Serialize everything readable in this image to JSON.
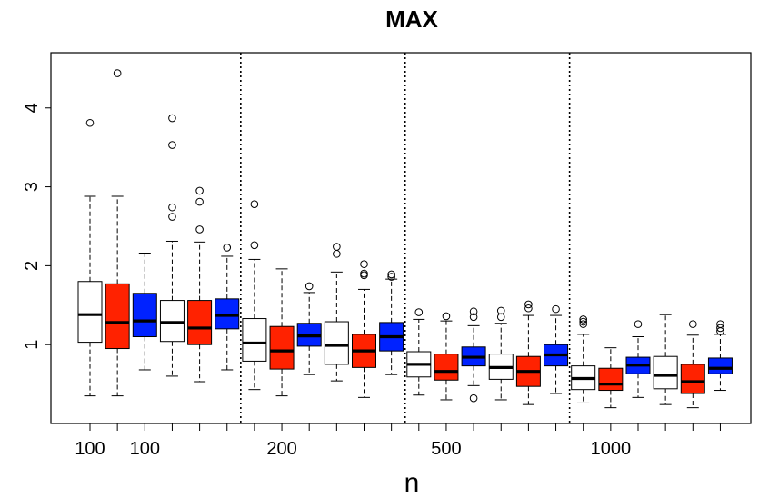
{
  "chart_data": {
    "type": "boxplot",
    "title": "MAX",
    "xlabel": "n",
    "ylabel": "",
    "ylim": [
      0.0,
      4.7
    ],
    "y_ticks": [
      1,
      2,
      3,
      4
    ],
    "x_tick_labels": [
      "100",
      "100",
      "200",
      "500",
      "1000"
    ],
    "separators_after_box": [
      6,
      12,
      18
    ],
    "colors": {
      "white": "#ffffff",
      "red": "#ff2200",
      "blue": "#0022ff"
    },
    "boxes": [
      {
        "group": "100",
        "color": "white",
        "whislo": 0.35,
        "q1": 1.03,
        "med": 1.38,
        "q3": 1.8,
        "whishi": 2.88,
        "outliers": [
          3.81
        ]
      },
      {
        "group": "100",
        "color": "red",
        "whislo": 0.35,
        "q1": 0.95,
        "med": 1.28,
        "q3": 1.77,
        "whishi": 2.88,
        "outliers": [
          4.44
        ]
      },
      {
        "group": "100",
        "color": "blue",
        "whislo": 0.68,
        "q1": 1.1,
        "med": 1.3,
        "q3": 1.65,
        "whishi": 2.16,
        "outliers": []
      },
      {
        "group": "100",
        "color": "white",
        "whislo": 0.6,
        "q1": 1.04,
        "med": 1.28,
        "q3": 1.56,
        "whishi": 2.31,
        "outliers": [
          2.62,
          2.74,
          3.53,
          3.87
        ]
      },
      {
        "group": "100",
        "color": "red",
        "whislo": 0.53,
        "q1": 1.0,
        "med": 1.21,
        "q3": 1.56,
        "whishi": 2.3,
        "outliers": [
          2.46,
          2.81,
          2.95
        ]
      },
      {
        "group": "100",
        "color": "blue",
        "whislo": 0.68,
        "q1": 1.2,
        "med": 1.37,
        "q3": 1.58,
        "whishi": 2.12,
        "outliers": [
          2.23
        ]
      },
      {
        "group": "200",
        "color": "white",
        "whislo": 0.43,
        "q1": 0.79,
        "med": 1.02,
        "q3": 1.33,
        "whishi": 2.08,
        "outliers": [
          2.26,
          2.78
        ]
      },
      {
        "group": "200",
        "color": "red",
        "whislo": 0.35,
        "q1": 0.69,
        "med": 0.92,
        "q3": 1.23,
        "whishi": 1.96,
        "outliers": []
      },
      {
        "group": "200",
        "color": "blue",
        "whislo": 0.62,
        "q1": 0.98,
        "med": 1.11,
        "q3": 1.27,
        "whishi": 1.66,
        "outliers": [
          1.74
        ]
      },
      {
        "group": "200",
        "color": "white",
        "whislo": 0.54,
        "q1": 0.75,
        "med": 0.99,
        "q3": 1.29,
        "whishi": 1.92,
        "outliers": [
          2.15,
          2.24
        ]
      },
      {
        "group": "200",
        "color": "red",
        "whislo": 0.33,
        "q1": 0.71,
        "med": 0.92,
        "q3": 1.13,
        "whishi": 1.7,
        "outliers": [
          1.88,
          1.9,
          2.02
        ]
      },
      {
        "group": "200",
        "color": "blue",
        "whislo": 0.62,
        "q1": 0.92,
        "med": 1.1,
        "q3": 1.28,
        "whishi": 1.83,
        "outliers": [
          1.86,
          1.89
        ]
      },
      {
        "group": "500",
        "color": "white",
        "whislo": 0.36,
        "q1": 0.59,
        "med": 0.75,
        "q3": 0.91,
        "whishi": 1.32,
        "outliers": [
          1.41
        ]
      },
      {
        "group": "500",
        "color": "red",
        "whislo": 0.3,
        "q1": 0.55,
        "med": 0.66,
        "q3": 0.88,
        "whishi": 1.3,
        "outliers": [
          1.36
        ]
      },
      {
        "group": "500",
        "color": "blue",
        "whislo": 0.48,
        "q1": 0.73,
        "med": 0.84,
        "q3": 0.97,
        "whishi": 1.24,
        "outliers": [
          1.35,
          1.42,
          0.32
        ]
      },
      {
        "group": "500",
        "color": "white",
        "whislo": 0.3,
        "q1": 0.56,
        "med": 0.71,
        "q3": 0.88,
        "whishi": 1.27,
        "outliers": [
          1.35,
          1.43
        ]
      },
      {
        "group": "500",
        "color": "red",
        "whislo": 0.24,
        "q1": 0.47,
        "med": 0.66,
        "q3": 0.85,
        "whishi": 1.37,
        "outliers": [
          1.46,
          1.51
        ]
      },
      {
        "group": "500",
        "color": "blue",
        "whislo": 0.38,
        "q1": 0.73,
        "med": 0.87,
        "q3": 1.0,
        "whishi": 1.37,
        "outliers": [
          1.45
        ]
      },
      {
        "group": "1000",
        "color": "white",
        "whislo": 0.26,
        "q1": 0.43,
        "med": 0.57,
        "q3": 0.73,
        "whishi": 1.13,
        "outliers": [
          1.26,
          1.29,
          1.32
        ]
      },
      {
        "group": "1000",
        "color": "red",
        "whislo": 0.2,
        "q1": 0.42,
        "med": 0.5,
        "q3": 0.7,
        "whishi": 0.96,
        "outliers": []
      },
      {
        "group": "1000",
        "color": "blue",
        "whislo": 0.33,
        "q1": 0.63,
        "med": 0.74,
        "q3": 0.84,
        "whishi": 1.1,
        "outliers": [
          1.26
        ]
      },
      {
        "group": "1000",
        "color": "white",
        "whislo": 0.24,
        "q1": 0.44,
        "med": 0.61,
        "q3": 0.85,
        "whishi": 1.38,
        "outliers": []
      },
      {
        "group": "1000",
        "color": "red",
        "whislo": 0.2,
        "q1": 0.38,
        "med": 0.53,
        "q3": 0.75,
        "whishi": 1.12,
        "outliers": [
          1.26
        ]
      },
      {
        "group": "1000",
        "color": "blue",
        "whislo": 0.42,
        "q1": 0.63,
        "med": 0.7,
        "q3": 0.83,
        "whishi": 1.13,
        "outliers": [
          1.17,
          1.21,
          1.26
        ]
      }
    ]
  }
}
